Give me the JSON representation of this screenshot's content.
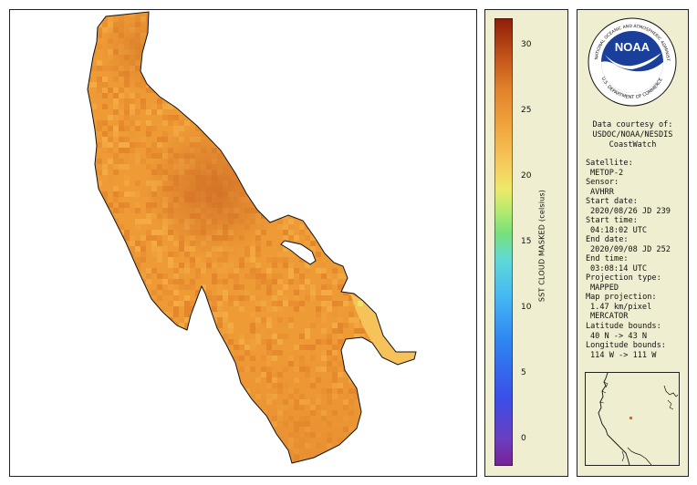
{
  "colorbar": {
    "label": "SST CLOUD MASKED (celsius)",
    "ticks": [
      "30",
      "25",
      "20",
      "15",
      "10",
      "5",
      "0"
    ]
  },
  "logo": {
    "text": "NOAA",
    "ring_top": "NATIONAL OCEANIC AND ATMOSPHERIC ADMINISTRATION",
    "ring_bottom": "U.S. DEPARTMENT OF COMMERCE"
  },
  "credits": {
    "line1": "Data courtesy of:",
    "line2": "USDOC/NOAA/NESDIS",
    "line3": "CoastWatch"
  },
  "metadata": [
    {
      "label": "Satellite:",
      "value": "METOP-2"
    },
    {
      "label": "Sensor:",
      "value": "AVHRR"
    },
    {
      "label": "Start date:",
      "value": "2020/08/26 JD 239"
    },
    {
      "label": "Start time:",
      "value": "04:18:02 UTC"
    },
    {
      "label": "End date:",
      "value": "2020/09/08 JD 252"
    },
    {
      "label": "End time:",
      "value": "03:08:14 UTC"
    },
    {
      "label": "Projection type:",
      "value": "MAPPED"
    },
    {
      "label": "Map projection:",
      "value": "1.47 km/pixel"
    },
    {
      "label": "",
      "value": "MERCATOR"
    },
    {
      "label": "Latitude bounds:",
      "value": "40 N -> 43 N"
    },
    {
      "label": "Longitude bounds:",
      "value": "114 W -> 111 W"
    }
  ],
  "colors": {
    "lake_base": "#ee9a35",
    "lake_warm": "#d9782a",
    "lake_cool": "#f3b24a",
    "outline": "#111111",
    "panel_bg": "#efeed0",
    "inset_marker": "#d96b1c"
  }
}
